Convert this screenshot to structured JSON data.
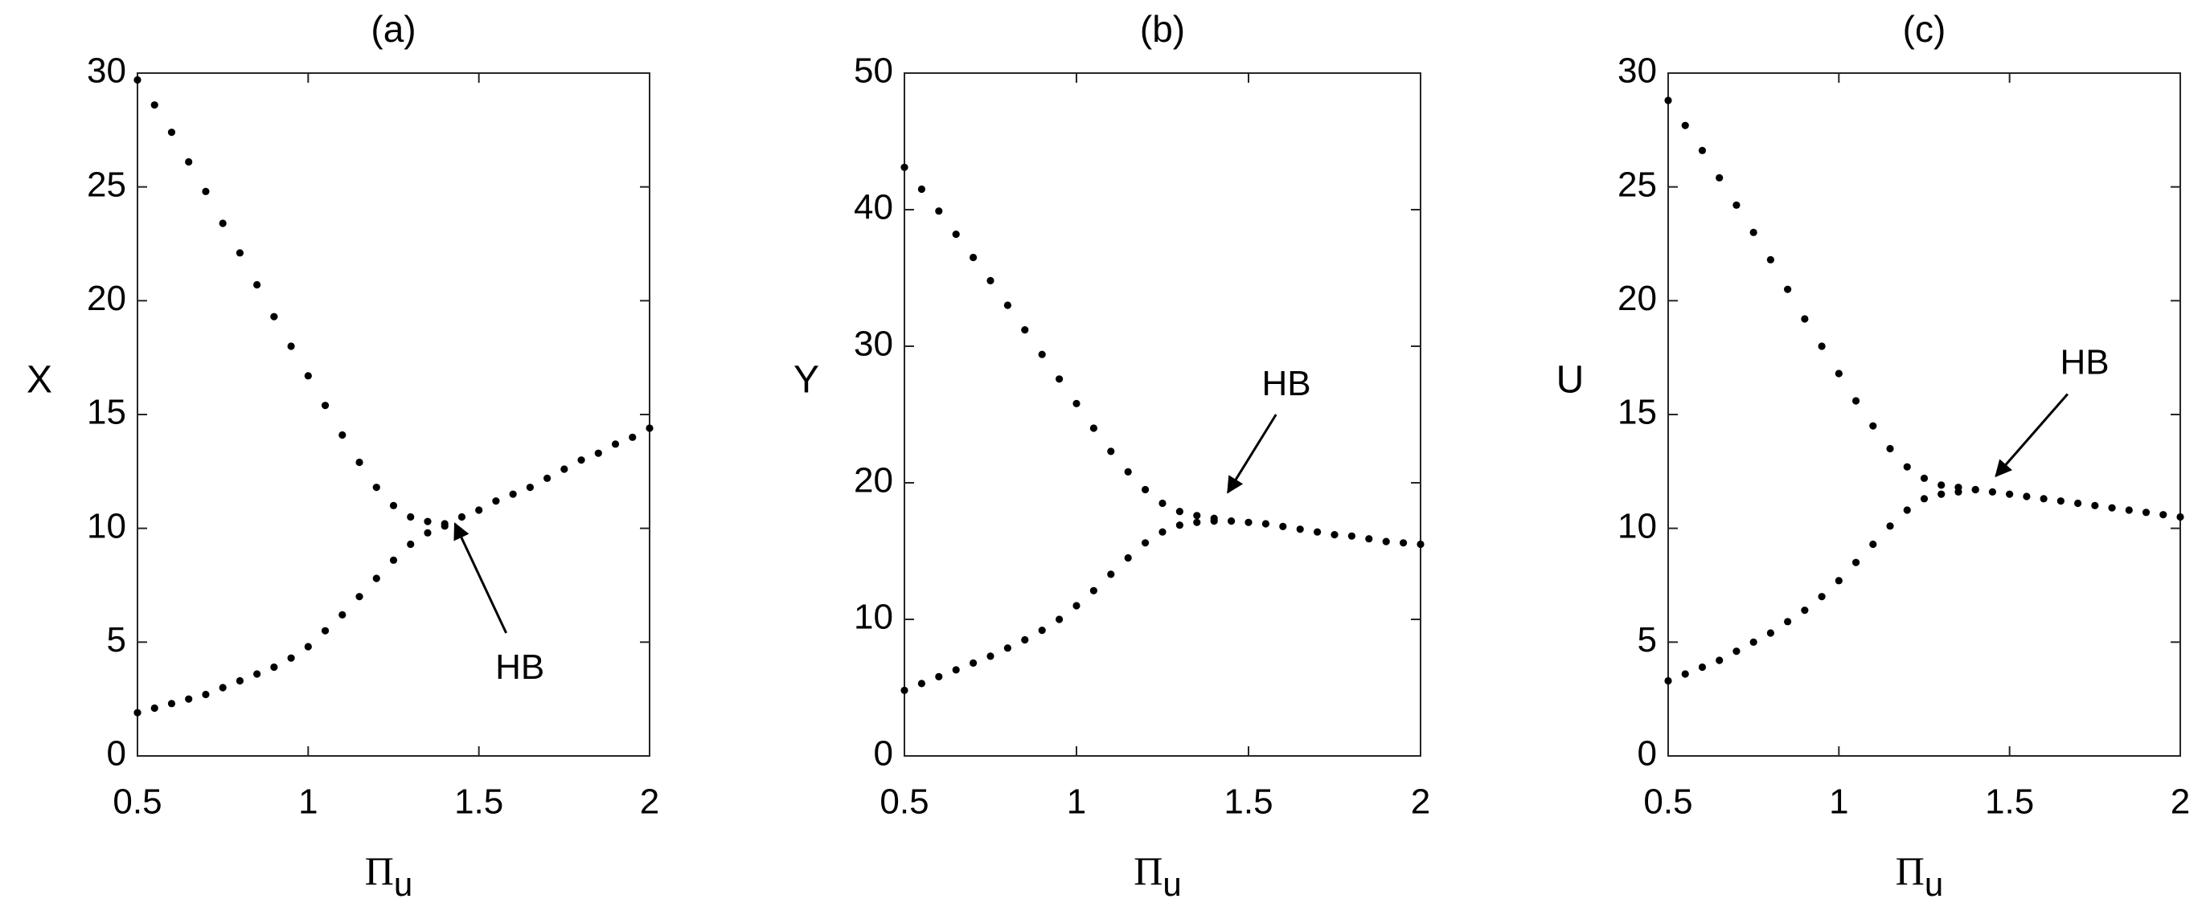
{
  "chart_data": [
    {
      "type": "scatter",
      "title": "(a)",
      "ylabel": "X",
      "xlabel": "Π",
      "xlabel_sub": "u",
      "color": "#000000",
      "xlim": [
        0.5,
        2
      ],
      "ylim": [
        0,
        30
      ],
      "xticks": [
        0.5,
        1,
        1.5,
        2
      ],
      "yticks": [
        0,
        5,
        10,
        15,
        20,
        25,
        30
      ],
      "series": [
        {
          "x": [
            0.5,
            0.55,
            0.6,
            0.65,
            0.7,
            0.75,
            0.8,
            0.85,
            0.9,
            0.95,
            1,
            1.05,
            1.1,
            1.15,
            1.2,
            1.25,
            1.3,
            1.35,
            1.4
          ],
          "values": [
            29.7,
            28.6,
            27.4,
            26.1,
            24.8,
            23.4,
            22.1,
            20.7,
            19.3,
            18.0,
            16.7,
            15.4,
            14.1,
            12.9,
            11.8,
            11.0,
            10.5,
            10.3,
            10.2
          ]
        },
        {
          "x": [
            0.5,
            0.55,
            0.6,
            0.65,
            0.7,
            0.75,
            0.8,
            0.85,
            0.9,
            0.95,
            1,
            1.05,
            1.1,
            1.15,
            1.2,
            1.25,
            1.3,
            1.35,
            1.4,
            1.45,
            1.5,
            1.55,
            1.6,
            1.65,
            1.7,
            1.75,
            1.8,
            1.85,
            1.9,
            1.95,
            2
          ],
          "values": [
            1.9,
            2.1,
            2.3,
            2.5,
            2.7,
            3.0,
            3.3,
            3.6,
            3.9,
            4.3,
            4.8,
            5.5,
            6.2,
            7.0,
            7.8,
            8.6,
            9.3,
            9.8,
            10.1,
            10.5,
            10.8,
            11.2,
            11.5,
            11.8,
            12.2,
            12.6,
            13.0,
            13.3,
            13.7,
            14.0,
            14.4
          ]
        }
      ],
      "annotations": [
        {
          "text": "HB"
        }
      ]
    },
    {
      "type": "scatter",
      "title": "(b)",
      "ylabel": "Y",
      "xlabel": "Π",
      "xlabel_sub": "u",
      "color": "#000000",
      "xlim": [
        0.5,
        2
      ],
      "ylim": [
        0,
        50
      ],
      "xticks": [
        0.5,
        1,
        1.5,
        2
      ],
      "yticks": [
        0,
        10,
        20,
        30,
        40,
        50
      ],
      "series": [
        {
          "x": [
            0.5,
            0.55,
            0.6,
            0.65,
            0.7,
            0.75,
            0.8,
            0.85,
            0.9,
            0.95,
            1,
            1.05,
            1.1,
            1.15,
            1.2,
            1.25,
            1.3,
            1.35,
            1.4
          ],
          "values": [
            43.1,
            41.5,
            39.9,
            38.2,
            36.5,
            34.8,
            33.0,
            31.2,
            29.4,
            27.6,
            25.8,
            24.0,
            22.3,
            20.8,
            19.5,
            18.5,
            17.9,
            17.6,
            17.4
          ]
        },
        {
          "x": [
            0.5,
            0.55,
            0.6,
            0.65,
            0.7,
            0.75,
            0.8,
            0.85,
            0.9,
            0.95,
            1,
            1.05,
            1.1,
            1.15,
            1.2,
            1.25,
            1.3,
            1.35,
            1.4,
            1.45,
            1.5,
            1.55,
            1.6,
            1.65,
            1.7,
            1.75,
            1.8,
            1.85,
            1.9,
            1.95,
            2
          ],
          "values": [
            4.8,
            5.3,
            5.8,
            6.3,
            6.8,
            7.3,
            7.9,
            8.5,
            9.2,
            10.0,
            11.0,
            12.1,
            13.3,
            14.5,
            15.6,
            16.4,
            16.9,
            17.1,
            17.2,
            17.2,
            17.1,
            17.0,
            16.8,
            16.6,
            16.4,
            16.2,
            16.1,
            15.9,
            15.7,
            15.6,
            15.5
          ]
        }
      ],
      "annotations": [
        {
          "text": "HB"
        }
      ]
    },
    {
      "type": "scatter",
      "title": "(c)",
      "ylabel": "U",
      "xlabel": "Π",
      "xlabel_sub": "u",
      "color": "#000000",
      "xlim": [
        0.5,
        2
      ],
      "ylim": [
        0,
        30
      ],
      "xticks": [
        0.5,
        1,
        1.5,
        2
      ],
      "yticks": [
        0,
        5,
        10,
        15,
        20,
        25,
        30
      ],
      "series": [
        {
          "x": [
            0.5,
            0.55,
            0.6,
            0.65,
            0.7,
            0.75,
            0.8,
            0.85,
            0.9,
            0.95,
            1,
            1.05,
            1.1,
            1.15,
            1.2,
            1.25,
            1.3,
            1.35,
            1.4
          ],
          "values": [
            28.8,
            27.7,
            26.6,
            25.4,
            24.2,
            23.0,
            21.8,
            20.5,
            19.2,
            18.0,
            16.8,
            15.6,
            14.5,
            13.5,
            12.7,
            12.2,
            11.9,
            11.8,
            11.7
          ]
        },
        {
          "x": [
            0.5,
            0.55,
            0.6,
            0.65,
            0.7,
            0.75,
            0.8,
            0.85,
            0.9,
            0.95,
            1,
            1.05,
            1.1,
            1.15,
            1.2,
            1.25,
            1.3,
            1.35,
            1.4,
            1.45,
            1.5,
            1.55,
            1.6,
            1.65,
            1.7,
            1.75,
            1.8,
            1.85,
            1.9,
            1.95,
            2
          ],
          "values": [
            3.3,
            3.6,
            3.9,
            4.2,
            4.6,
            5.0,
            5.4,
            5.9,
            6.4,
            7.0,
            7.7,
            8.5,
            9.3,
            10.1,
            10.8,
            11.3,
            11.5,
            11.6,
            11.7,
            11.6,
            11.5,
            11.4,
            11.3,
            11.2,
            11.1,
            11.0,
            10.9,
            10.8,
            10.7,
            10.6,
            10.5
          ]
        }
      ],
      "annotations": [
        {
          "text": "HB"
        }
      ]
    }
  ]
}
